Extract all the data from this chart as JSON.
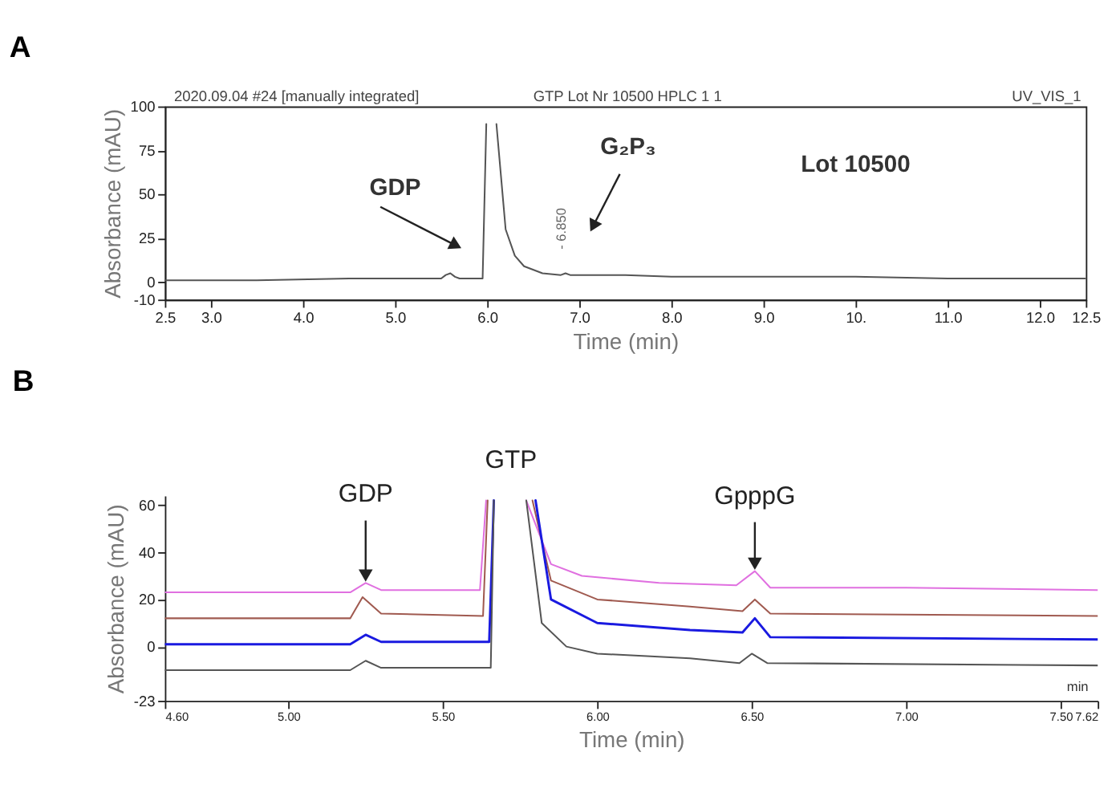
{
  "chart_data": [
    {
      "type": "line",
      "title": "A",
      "xlabel": "Time (min)",
      "ylabel": "Absorbance (mAU)",
      "xlim": [
        2.5,
        12.5
      ],
      "ylim": [
        -10,
        100
      ],
      "xticks": [
        2.5,
        {
          "value": 3,
          "label": "3.0"
        },
        {
          "value": 4,
          "label": "4.0"
        },
        {
          "value": 5,
          "label": "5.0"
        },
        {
          "value": 6,
          "label": "6.0"
        },
        {
          "value": 7,
          "label": "7.0"
        },
        {
          "value": 8,
          "label": "8.0"
        },
        {
          "value": 9,
          "label": "9.0"
        },
        {
          "value": 10,
          "label": "10."
        },
        {
          "value": 11,
          "label": "11.0"
        },
        {
          "value": 12,
          "label": "12.0"
        },
        12.5
      ],
      "yticks": [
        -10,
        0,
        25,
        50,
        75,
        100
      ],
      "series": [
        {
          "color": "#555555",
          "x": [
            2.5,
            3.5,
            4.5,
            5.0,
            5.5,
            5.55,
            5.6,
            5.65,
            5.7,
            5.95,
            5.99,
            6.02,
            6.1,
            6.15,
            6.2,
            6.3,
            6.4,
            6.6,
            6.8,
            6.85,
            6.9,
            7.5,
            8.0,
            9.0,
            10.0,
            11.0,
            12.5
          ],
          "values": [
            1,
            1,
            2,
            2,
            2,
            4,
            5,
            3,
            2,
            2,
            90,
            null,
            90,
            60,
            30,
            15,
            9,
            5,
            4,
            5,
            4,
            4,
            3,
            3,
            3,
            2,
            2
          ]
        }
      ],
      "annotations": [
        "2020.09.04 #24 [manually integrated]",
        "GTP Lot Nr 10500 HPLC 1 1",
        "UV_VIS_1",
        "Lot 10500",
        "GDP",
        "G₂P₃",
        {
          "text": "- 6.850",
          "x": 6.85,
          "y": 5
        }
      ]
    },
    {
      "type": "line",
      "title": "B",
      "xlabel": "Time (min)",
      "ylabel": "Absorbance (mAU)",
      "xlim": [
        4.6,
        7.62
      ],
      "ylim": [
        -23,
        64
      ],
      "xticks": [
        {
          "value": 4.6,
          "label": "4.60"
        },
        {
          "value": 5,
          "label": "5.00"
        },
        {
          "value": 5.5,
          "label": "5.50"
        },
        {
          "value": 6,
          "label": "6.00"
        },
        {
          "value": 6.5,
          "label": "6.50"
        },
        {
          "value": 7,
          "label": "7.00"
        },
        {
          "value": 7.5,
          "label": "7.50"
        },
        7.62
      ],
      "yticks": [
        -23,
        0,
        20,
        40,
        60
      ],
      "series": [
        {
          "color": "#e070e0",
          "x": [
            4.6,
            5.2,
            5.25,
            5.3,
            5.62,
            5.64,
            5.7,
            5.77,
            5.85,
            5.95,
            6.2,
            6.45,
            6.51,
            6.56,
            7.0,
            7.62
          ],
          "values": [
            23,
            23,
            27,
            24,
            24,
            62,
            null,
            62,
            35,
            30,
            27,
            26,
            32,
            25,
            25,
            24
          ]
        },
        {
          "color": "#a05a50",
          "x": [
            4.6,
            5.2,
            5.24,
            5.3,
            5.63,
            5.645,
            5.72,
            5.79,
            5.85,
            6.0,
            6.3,
            6.47,
            6.51,
            6.56,
            7.62
          ],
          "values": [
            12,
            12,
            21,
            14,
            13,
            62,
            null,
            62,
            28,
            20,
            17,
            15,
            20,
            14,
            13
          ]
        },
        {
          "color": "#1a1ae0",
          "x": [
            4.6,
            5.2,
            5.25,
            5.3,
            5.65,
            5.665,
            5.73,
            5.8,
            5.85,
            6.0,
            6.3,
            6.47,
            6.51,
            6.56,
            7.62
          ],
          "values": [
            1,
            1,
            5,
            2,
            2,
            62,
            null,
            62,
            20,
            10,
            7,
            6,
            12,
            4,
            3
          ]
        },
        {
          "color": "#555555",
          "x": [
            4.6,
            5.2,
            5.25,
            5.3,
            5.655,
            5.665,
            5.72,
            5.77,
            5.82,
            5.9,
            6.0,
            6.3,
            6.46,
            6.5,
            6.55,
            7.62
          ],
          "values": [
            -10,
            -10,
            -6,
            -9,
            -9,
            62,
            null,
            62,
            10,
            0,
            -3,
            -5,
            -7,
            -3,
            -7,
            -8
          ]
        }
      ],
      "annotations": [
        {
          "text": "GDP",
          "x": 5.25,
          "y": 27
        },
        "GTP",
        {
          "text": "GpppG",
          "x": 6.51,
          "y": 32
        },
        "min"
      ]
    }
  ]
}
